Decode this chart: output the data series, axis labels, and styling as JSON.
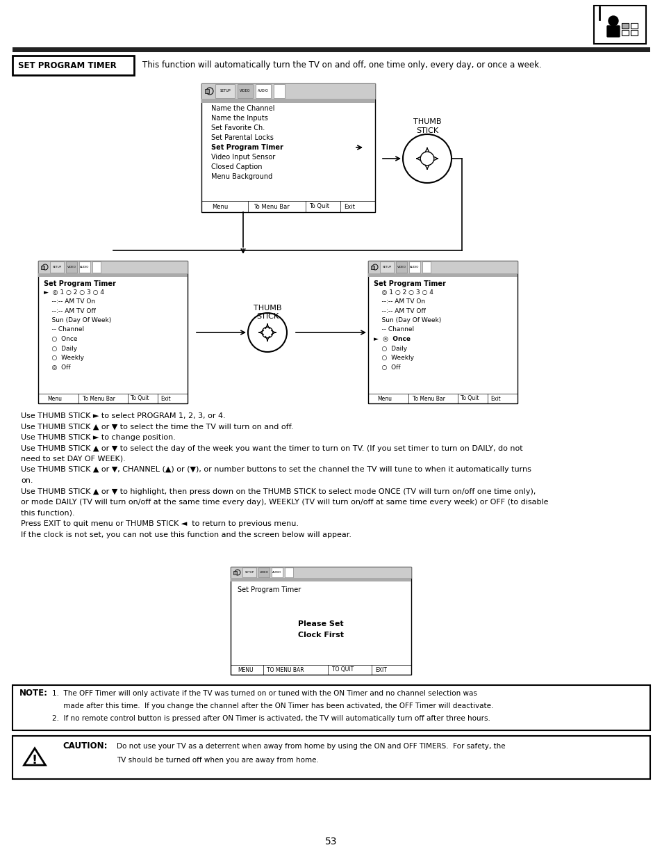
{
  "page_num": "53",
  "bg_color": "#ffffff",
  "header_box_text": "SET PROGRAM TIMER",
  "header_desc": "This function will automatically turn the TV on and off, one time only, every day, or once a week.",
  "top_menu_lines": [
    "Name the Channel",
    "Name the Inputs",
    "Set Favorite Ch.",
    "Set Parental Locks",
    "Set Program Timer",
    "Video Input Sensor",
    "Closed Caption",
    "Menu Background"
  ],
  "menu1_title": "Set Program Timer",
  "menu1_lines": [
    [
      "►  ◎ 1 ○ 2 ○ 3 ○ 4",
      false
    ],
    [
      "    --:-- AM TV On",
      false
    ],
    [
      "    --:-- AM TV Off",
      false
    ],
    [
      "    Sun (Day Of Week)",
      false
    ],
    [
      "    -- Channel",
      false
    ],
    [
      "    ○  Once",
      false
    ],
    [
      "    ○  Daily",
      false
    ],
    [
      "    ○  Weekly",
      false
    ],
    [
      "    ◎  Off",
      false
    ]
  ],
  "menu2_title": "Set Program Timer",
  "menu2_lines": [
    [
      "    ◎ 1 ○ 2 ○ 3 ○ 4",
      false
    ],
    [
      "    --:-- AM TV On",
      false
    ],
    [
      "    --:-- AM TV Off",
      false
    ],
    [
      "    Sun (Day Of Week)",
      false
    ],
    [
      "    -- Channel",
      false
    ],
    [
      "►  ◎  Once",
      true
    ],
    [
      "    ○  Daily",
      false
    ],
    [
      "    ○  Weekly",
      false
    ],
    [
      "    ○  Off",
      false
    ]
  ],
  "body_text": [
    "Use THUMB STICK ► to select PROGRAM 1, 2, 3, or 4.",
    "Use THUMB STICK ▲ or ▼ to select the time the TV will turn on and off.",
    "Use THUMB STICK ► to change position.",
    "Use THUMB STICK ▲ or ▼ to select the day of the week you want the timer to turn on TV. (If you set timer to turn on DAILY, do not",
    "need to set DAY OF WEEK).",
    "Use THUMB STICK ▲ or ▼, CHANNEL (▲) or (▼), or number buttons to set the channel the TV will tune to when it automatically turns",
    "on.",
    "Use THUMB STICK ▲ or ▼ to highlight, then press down on the THUMB STICK to select mode ONCE (TV will turn on/off one time only),",
    "or mode DAILY (TV will turn on/off at the same time every day), WEEKLY (TV will turn on/off at same time every week) or OFF (to disable",
    "this function).",
    "Press EXIT to quit menu or THUMB STICK ◄  to return to previous menu.",
    "If the clock is not set, you can not use this function and the screen below will appear."
  ],
  "note_label": "NOTE:",
  "note_lines": [
    "1.  The OFF Timer will only activate if the TV was turned on or tuned with the ON Timer and no channel selection was",
    "     made after this time.  If you change the channel after the ON Timer has been activated, the OFF Timer will deactivate.",
    "2.  If no remote control button is pressed after ON Timer is activated, the TV will automatically turn off after three hours."
  ],
  "caution_label": "CAUTION:",
  "caution_lines": [
    "Do not use your TV as a deterrent when away from home by using the ON and OFF TIMERS.  For safety, the",
    "TV should be turned off when you are away from home."
  ],
  "gray_bar_color": "#aaaaaa",
  "light_gray": "#cccccc",
  "dark_bar": "#333333"
}
